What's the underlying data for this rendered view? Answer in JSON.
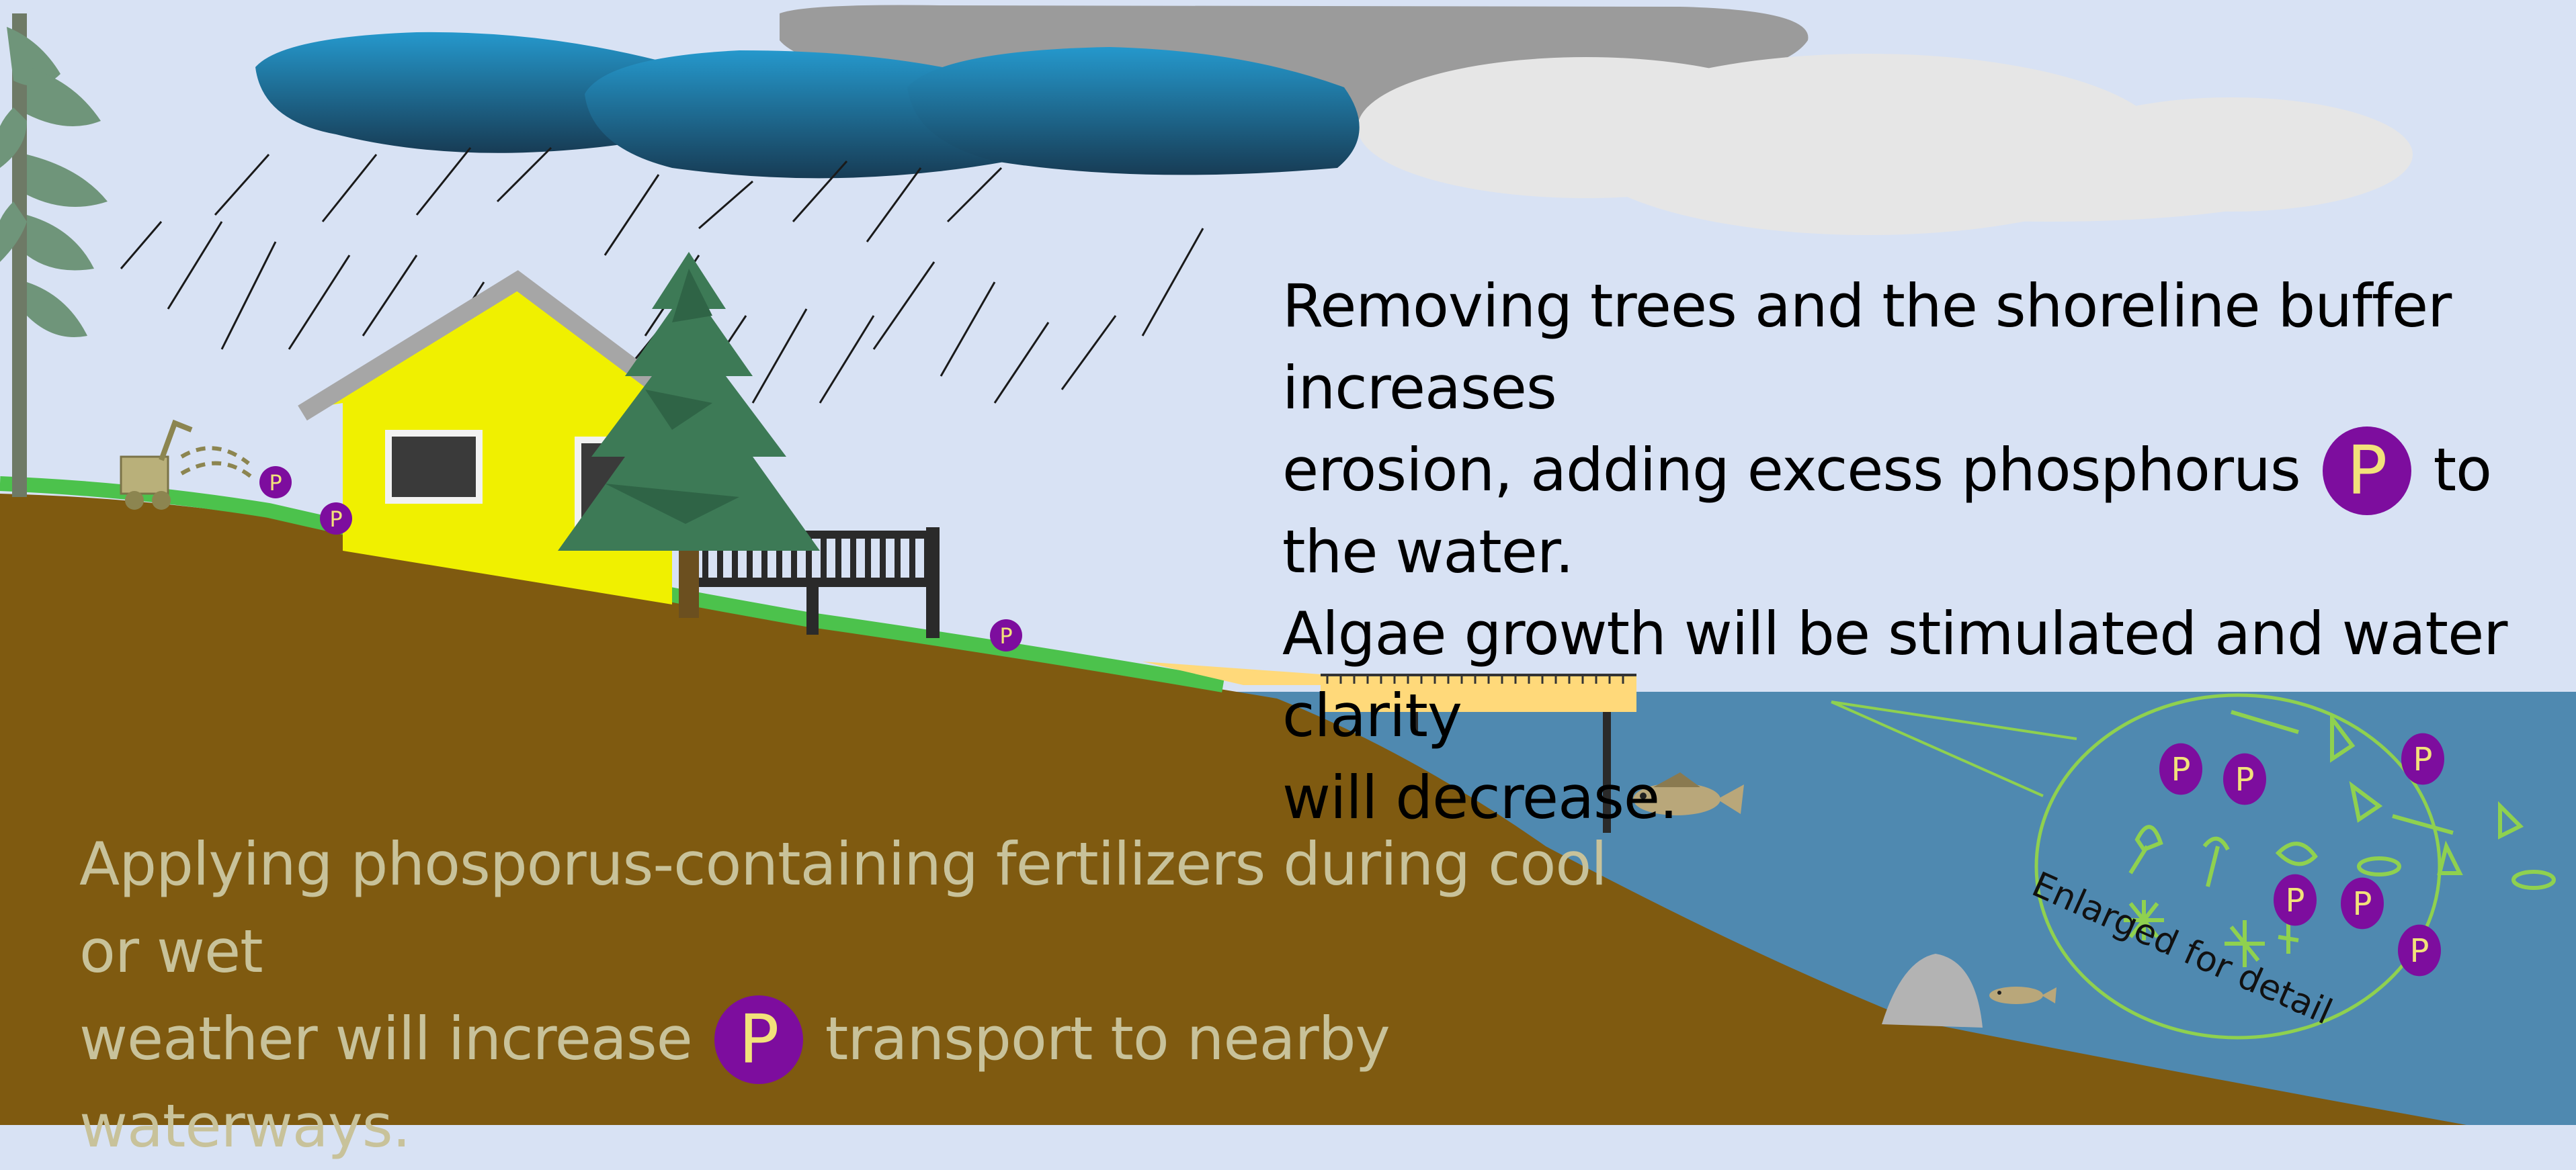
{
  "diagram": {
    "top_caption": {
      "line1": "Removing trees and the shoreline buffer increases",
      "line2_before": "erosion, adding excess phosphorus",
      "line2_after": "to the water.",
      "line3": "Algae growth will be stimulated and water clarity",
      "line4": "will decrease."
    },
    "bottom_caption": {
      "line1": "Applying phosporus-containing fertilizers during cool or wet",
      "line2_before": "weather will increase",
      "line2_after": "transport to nearby waterways."
    },
    "phosphorus_symbol": "P",
    "inset_label": "Enlarged for detail",
    "colors": {
      "sky": "#d8e2f4",
      "soil": "#7f5a10",
      "grass": "#4cc24c",
      "water": "#4f89b0",
      "house": "#f0f000",
      "roof": "#a6a6a6",
      "dock": "#ffd97a",
      "phosphorus": "#7d0d9e",
      "phosphorus_text": "#f2e27a",
      "storm_cloud": "#1f86b8",
      "gray_cloud": "#9b9b9b",
      "light_cloud": "#e6e6e6",
      "algae": "#8fd14f"
    },
    "icons": [
      "storm-cloud",
      "rain",
      "house",
      "pine-tree",
      "fertilizer-spreader",
      "deck",
      "dock",
      "fish",
      "rock",
      "phosphorus-marker",
      "algae"
    ]
  }
}
